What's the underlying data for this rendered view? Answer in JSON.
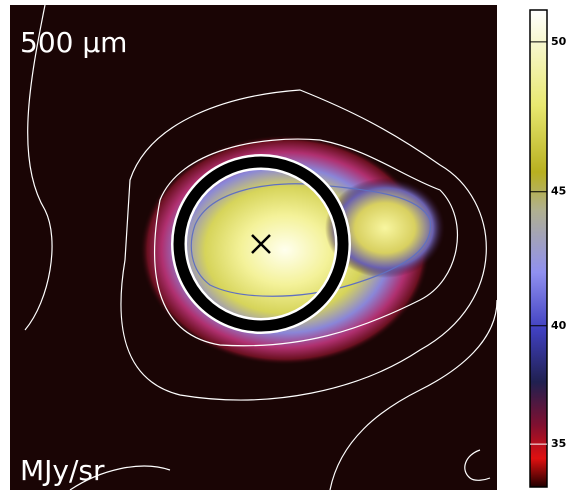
{
  "chart_data": {
    "type": "image",
    "title": "500 μm",
    "colorbar_label": "MJy/sr",
    "colorbar_scale": "power",
    "colorbar_exponent": 2,
    "clim": [
      33,
      51
    ],
    "cticks": [
      35,
      40,
      45,
      50
    ]
  }
}
